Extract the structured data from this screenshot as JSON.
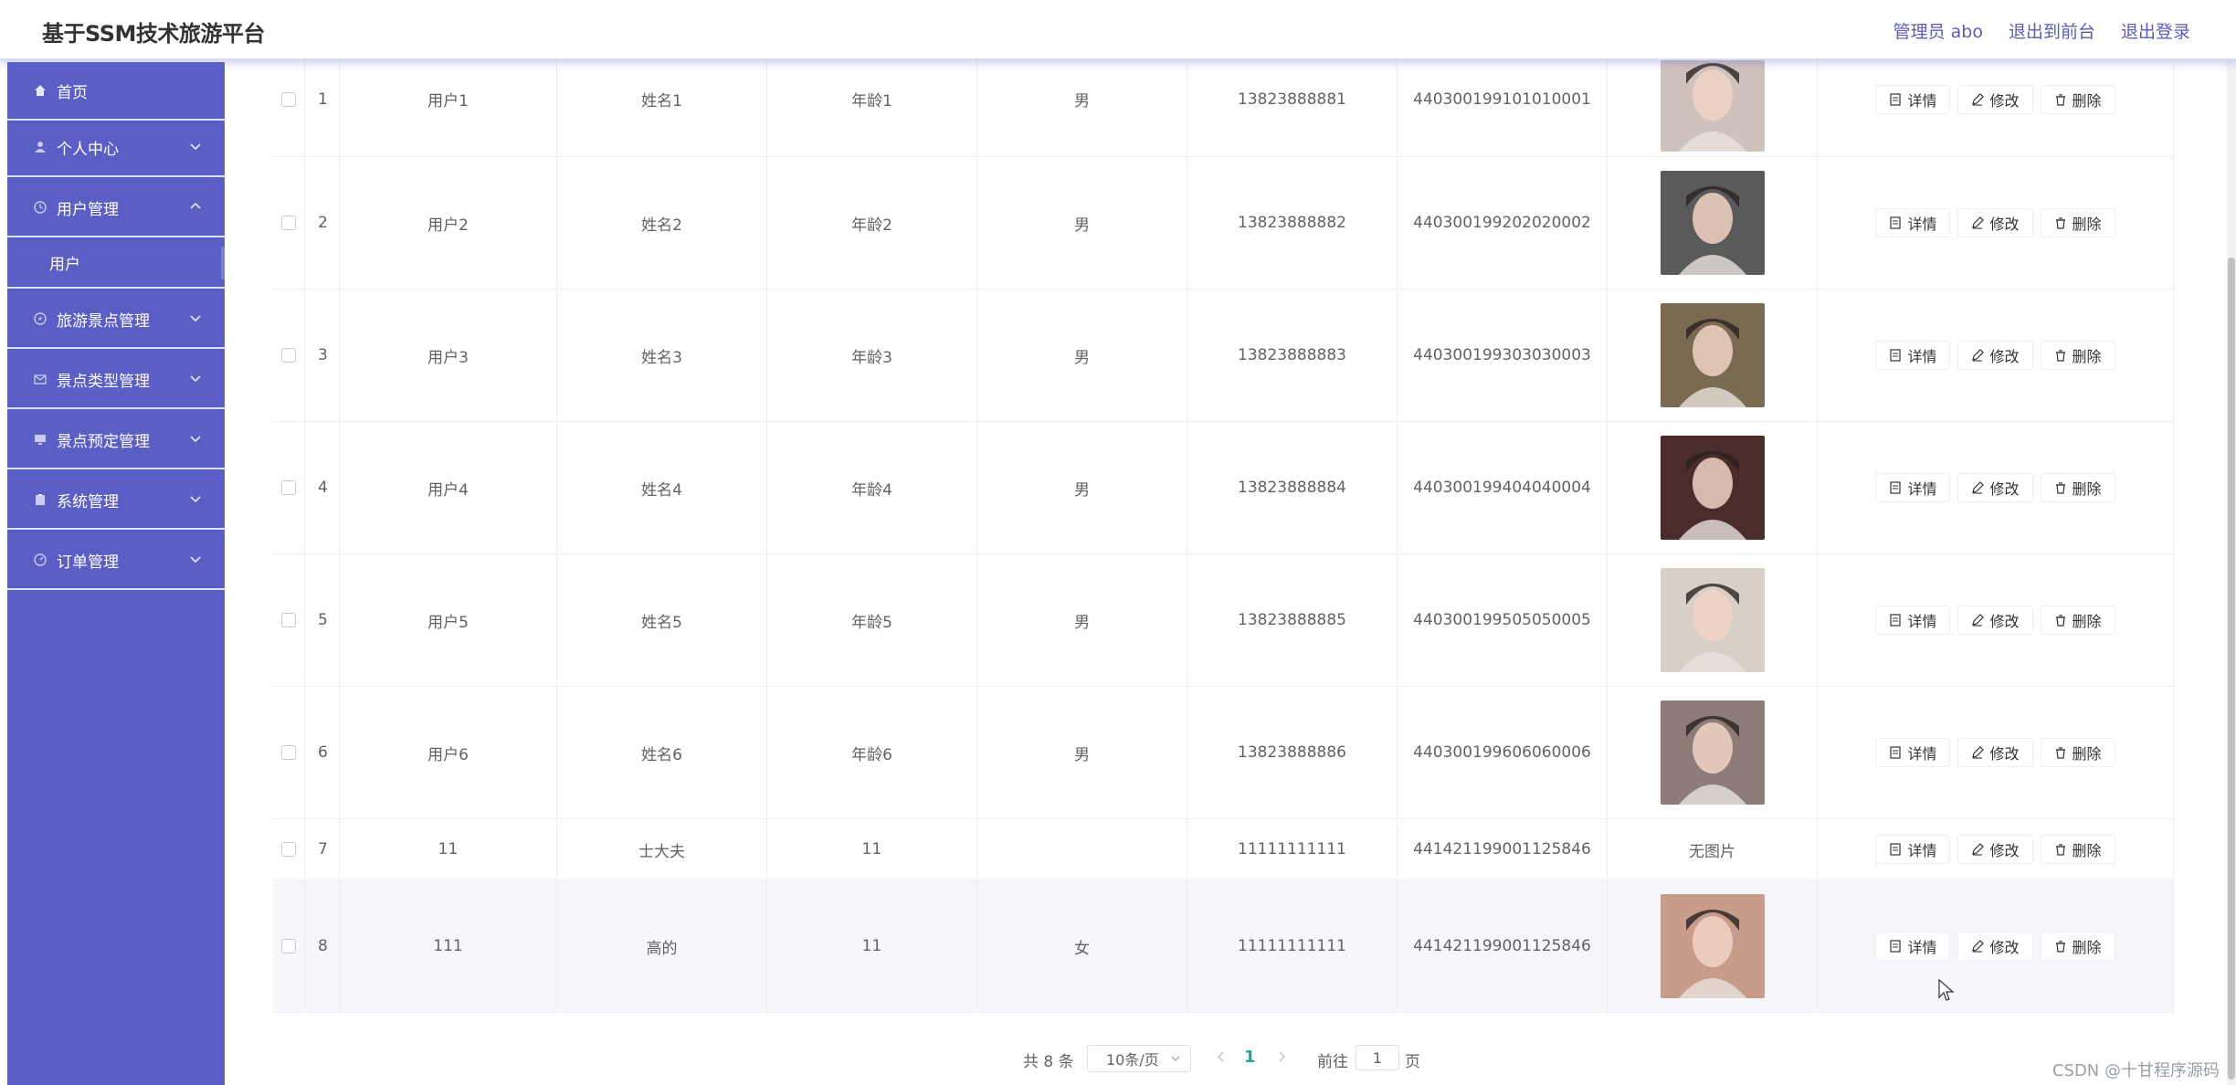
{
  "header": {
    "title": "基于SSM技术旅游平台",
    "admin_label": "管理员 abo",
    "to_front": "退出到前台",
    "logout": "退出登录"
  },
  "sidebar": {
    "items": [
      {
        "label": "首页",
        "icon": "home-icon",
        "expandable": false
      },
      {
        "label": "个人中心",
        "icon": "user-icon",
        "expandable": true
      },
      {
        "label": "用户管理",
        "icon": "clock-icon",
        "expandable": true,
        "expanded": true
      },
      {
        "label": "旅游景点管理",
        "icon": "compass-icon",
        "expandable": true
      },
      {
        "label": "景点类型管理",
        "icon": "mail-icon",
        "expandable": true
      },
      {
        "label": "景点预定管理",
        "icon": "monitor-icon",
        "expandable": true
      },
      {
        "label": "系统管理",
        "icon": "clipboard-icon",
        "expandable": true
      },
      {
        "label": "订单管理",
        "icon": "dashboard-icon",
        "expandable": true
      }
    ],
    "sub_item": "用户"
  },
  "table": {
    "rows": [
      {
        "index": "1",
        "account": "用户1",
        "name": "姓名1",
        "age": "年龄1",
        "gender": "男",
        "phone": "13823888881",
        "id_card": "440300199101010001",
        "photo": "photo",
        "photo_color": "#cfc2bd"
      },
      {
        "index": "2",
        "account": "用户2",
        "name": "姓名2",
        "age": "年龄2",
        "gender": "男",
        "phone": "13823888882",
        "id_card": "440300199202020002",
        "photo": "photo",
        "photo_color": "#5a5a5a"
      },
      {
        "index": "3",
        "account": "用户3",
        "name": "姓名3",
        "age": "年龄3",
        "gender": "男",
        "phone": "13823888883",
        "id_card": "440300199303030003",
        "photo": "photo",
        "photo_color": "#7a6a52"
      },
      {
        "index": "4",
        "account": "用户4",
        "name": "姓名4",
        "age": "年龄4",
        "gender": "男",
        "phone": "13823888884",
        "id_card": "440300199404040004",
        "photo": "photo",
        "photo_color": "#4a2c2a"
      },
      {
        "index": "5",
        "account": "用户5",
        "name": "姓名5",
        "age": "年龄5",
        "gender": "男",
        "phone": "13823888885",
        "id_card": "440300199505050005",
        "photo": "photo",
        "photo_color": "#d8cfc6"
      },
      {
        "index": "6",
        "account": "用户6",
        "name": "姓名6",
        "age": "年龄6",
        "gender": "男",
        "phone": "13823888886",
        "id_card": "440300199606060006",
        "photo": "photo",
        "photo_color": "#8d7c78"
      },
      {
        "index": "7",
        "account": "11",
        "name": "士大夫",
        "age": "11",
        "gender": "",
        "phone": "11111111111",
        "id_card": "441421199001125846",
        "photo": "无图片",
        "photo_color": ""
      },
      {
        "index": "8",
        "account": "111",
        "name": "高的",
        "age": "11",
        "gender": "女",
        "phone": "11111111111",
        "id_card": "441421199001125846",
        "photo": "photo",
        "photo_color": "#c79c8a"
      }
    ],
    "actions": {
      "detail": "详情",
      "edit": "修改",
      "delete": "删除"
    }
  },
  "pagination": {
    "total": "共 8 条",
    "page_size": "10条/页",
    "current_page": "1",
    "goto_label": "前往",
    "goto_value": "1",
    "page_unit": "页"
  },
  "watermark": "CSDN @十甘程序源码",
  "colors": {
    "sidebar_bg": "#5b5ec4",
    "accent": "#28a88f",
    "header_link": "#5a5db5"
  }
}
